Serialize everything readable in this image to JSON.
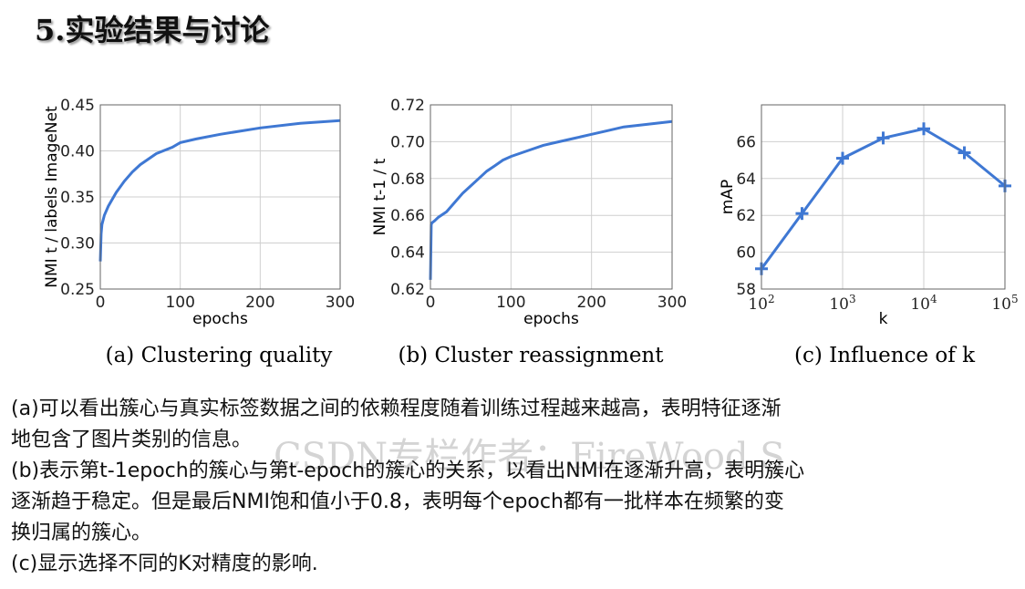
{
  "slide": {
    "title": "5.实验结果与讨论"
  },
  "colors": {
    "line": "#3f78d3",
    "grid": "#cfcfcf",
    "axis": "#666666"
  },
  "chart_data": [
    {
      "type": "line",
      "caption": "(a) Clustering quality",
      "xlabel": "epochs",
      "ylabel": "NMI t / labels ImageNet",
      "xlim": [
        0,
        300
      ],
      "ylim": [
        0.25,
        0.45
      ],
      "xticks": [
        0,
        100,
        200,
        300
      ],
      "yticks": [
        0.25,
        0.3,
        0.35,
        0.4,
        0.45
      ],
      "grid": true,
      "series": [
        {
          "x": [
            0,
            1,
            2,
            5,
            10,
            20,
            30,
            40,
            50,
            70,
            90,
            100,
            120,
            150,
            200,
            250,
            300
          ],
          "y": [
            0.28,
            0.31,
            0.32,
            0.33,
            0.34,
            0.355,
            0.367,
            0.377,
            0.385,
            0.397,
            0.404,
            0.409,
            0.413,
            0.418,
            0.425,
            0.43,
            0.433
          ]
        }
      ]
    },
    {
      "type": "line",
      "caption": "(b) Cluster reassignment",
      "xlabel": "epochs",
      "ylabel": "NMI t-1 / t",
      "xlim": [
        0,
        300
      ],
      "ylim": [
        0.62,
        0.72
      ],
      "xticks": [
        0,
        100,
        200,
        300
      ],
      "yticks": [
        0.62,
        0.64,
        0.66,
        0.68,
        0.7,
        0.72
      ],
      "grid": true,
      "series": [
        {
          "x": [
            0,
            1,
            2,
            5,
            10,
            20,
            30,
            40,
            50,
            60,
            70,
            80,
            90,
            100,
            120,
            140,
            160,
            180,
            200,
            220,
            240,
            260,
            280,
            300
          ],
          "y": [
            0.625,
            0.655,
            0.656,
            0.657,
            0.659,
            0.662,
            0.667,
            0.672,
            0.676,
            0.68,
            0.684,
            0.687,
            0.69,
            0.692,
            0.695,
            0.698,
            0.7,
            0.702,
            0.704,
            0.706,
            0.708,
            0.709,
            0.71,
            0.711
          ]
        }
      ]
    },
    {
      "type": "line",
      "caption": "(c) Influence of k",
      "xlabel": "k",
      "ylabel": "mAP",
      "xscale": "log",
      "xlim": [
        100,
        100000
      ],
      "ylim": [
        58,
        68
      ],
      "xticks": [
        "10^2",
        "10^3",
        "10^4",
        "10^5"
      ],
      "yticks": [
        58,
        60,
        62,
        64,
        66
      ],
      "grid": true,
      "marker": "+",
      "series": [
        {
          "x": [
            100,
            316,
            1000,
            3162,
            10000,
            31623,
            100000
          ],
          "y": [
            59.1,
            62.1,
            65.1,
            66.2,
            66.7,
            65.4,
            63.6
          ]
        }
      ]
    }
  ],
  "text": {
    "para_a_line1": "(a)可以看出簇心与真实标签数据之间的依赖程度随着训练过程越来越高，表明特征逐渐",
    "para_a_line2": "地包含了图片类别的信息。",
    "para_b_line1": "(b)表示第t-1epoch的簇心与第t-epoch的簇心的关系，以看出NMI在逐渐升高，表明簇心",
    "para_b_line2": "逐渐趋于稳定。但是最后NMI饱和值小于0.8，表明每个epoch都有一批样本在频繁的变",
    "para_b_line3": "换归属的簇心。",
    "para_c_line1": "(c)显示选择不同的K对精度的影响.",
    "watermark": "CSDN专栏作者：FireWood S"
  }
}
